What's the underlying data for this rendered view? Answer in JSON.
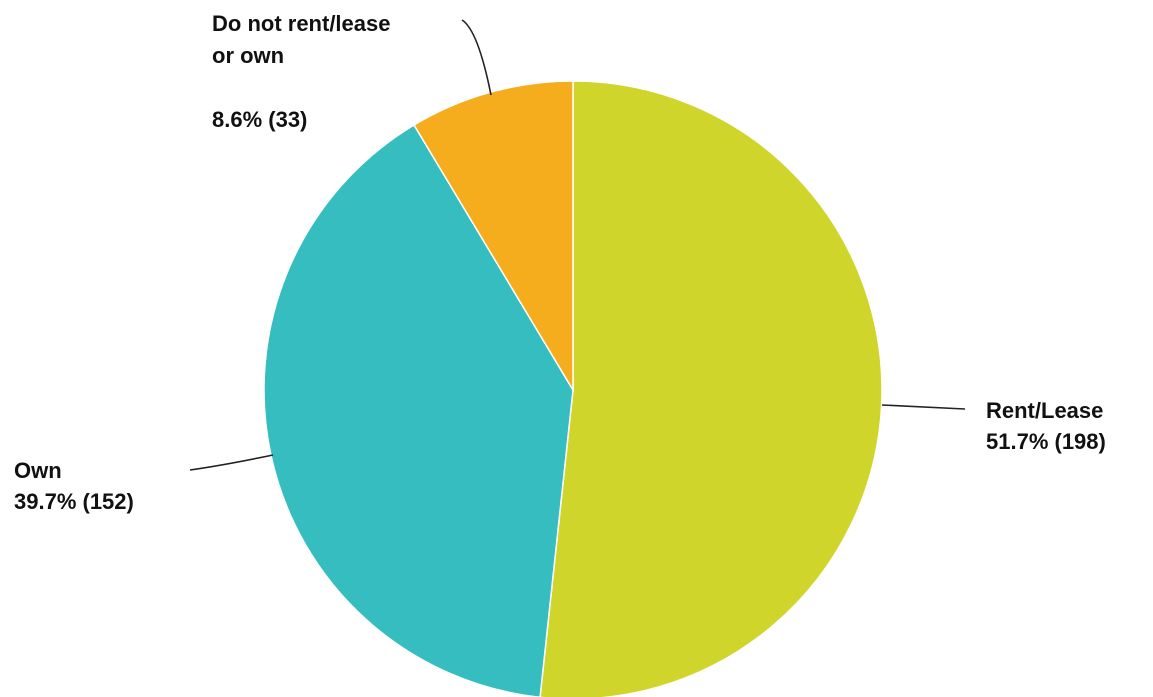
{
  "chart_data": {
    "type": "pie",
    "title": "",
    "start_angle_deg": 0,
    "direction": "clockwise",
    "slices": [
      {
        "category": "Rent/Lease",
        "label_lines": [
          "Rent/Lease",
          "51.7% (198)"
        ],
        "percent": 51.7,
        "count": 198,
        "color": "#cfd52a"
      },
      {
        "category": "Own",
        "label_lines": [
          "Own",
          "39.7% (152)"
        ],
        "percent": 39.7,
        "count": 152,
        "color": "#35bdbf"
      },
      {
        "category": "Do not rent/lease or own",
        "label_lines": [
          "Do not rent/lease",
          "or own",
          "",
          "8.6% (33)"
        ],
        "percent": 8.6,
        "count": 33,
        "color": "#f5ad1e"
      }
    ]
  }
}
